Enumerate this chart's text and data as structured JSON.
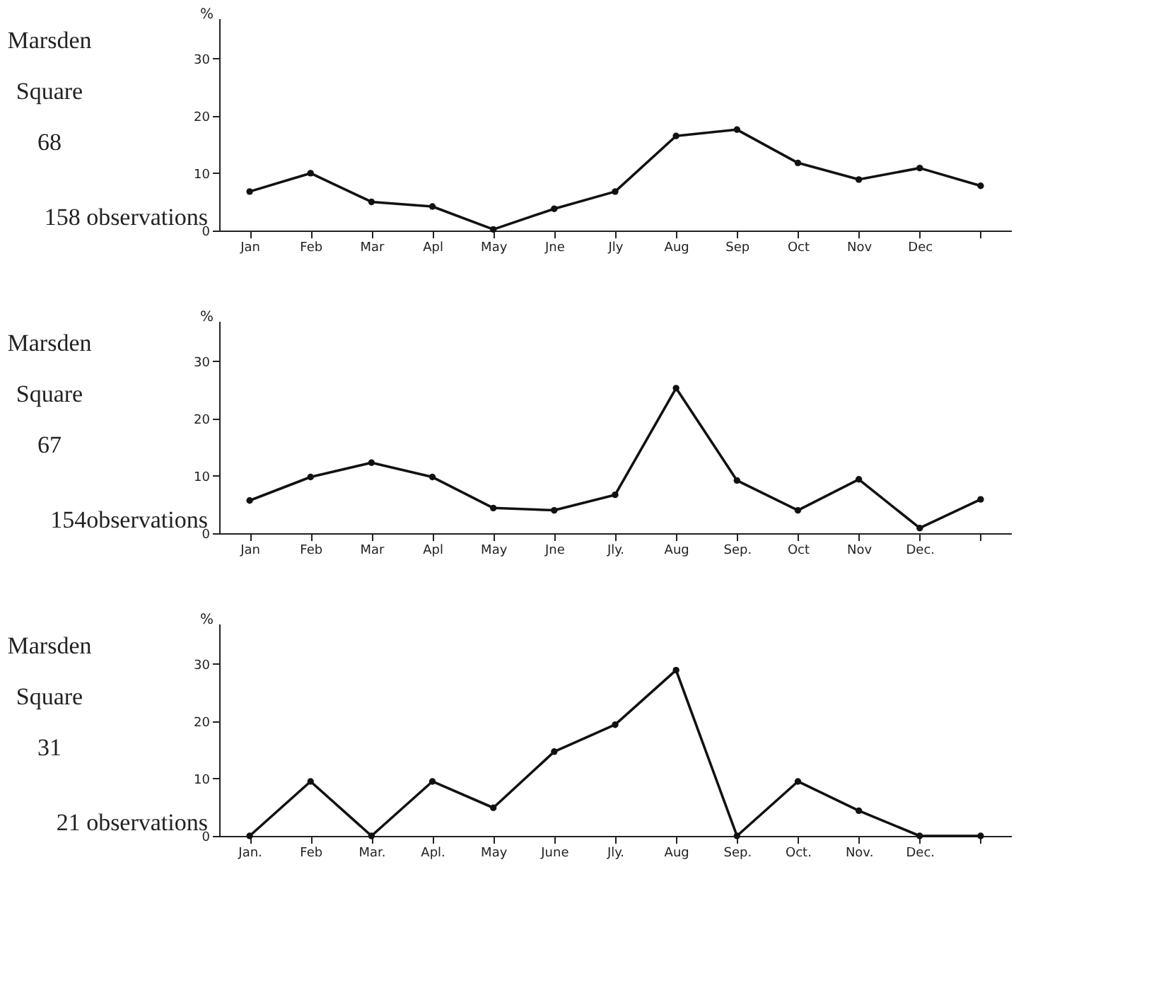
{
  "chart_data": [
    {
      "type": "line",
      "title": "Marsden Square 68",
      "subtitle": "158 observations",
      "ylabel": "%",
      "categories": [
        "Jan",
        "Feb",
        "Mar",
        "Apl",
        "May",
        "Jne",
        "Jly",
        "Aug",
        "Sep",
        "Oct",
        "Nov",
        "Dec",
        null
      ],
      "series": [
        {
          "color": "#111111",
          "values": [
            6.8,
            10,
            5,
            4.2,
            0.2,
            3.8,
            6.8,
            16.5,
            17.6,
            11.8,
            8.9,
            10.9,
            7.8
          ]
        }
      ],
      "ylim": [
        0,
        37
      ],
      "yticks": [
        0,
        10,
        20,
        30
      ],
      "grid": false,
      "marker": "circle",
      "line_style": "solid"
    },
    {
      "type": "line",
      "title": "Marsden Square 67",
      "subtitle": "154observations",
      "ylabel": "%",
      "categories": [
        "Jan",
        "Feb",
        "Mar",
        "Apl",
        "May",
        "Jne",
        "Jly.",
        "Aug",
        "Sep.",
        "Oct",
        "Nov",
        "Dec.",
        null
      ],
      "series": [
        {
          "color": "#111111",
          "values": [
            5.7,
            9.8,
            12.3,
            9.8,
            4.4,
            4.0,
            6.7,
            25.3,
            9.2,
            4.0,
            9.4,
            0.9,
            5.9
          ]
        }
      ],
      "ylim": [
        0,
        37
      ],
      "yticks": [
        0,
        10,
        20,
        30
      ],
      "grid": false,
      "marker": "circle",
      "line_style": "solid"
    },
    {
      "type": "line",
      "title": "Marsden Square 31",
      "subtitle": "21 observations",
      "ylabel": "%",
      "categories": [
        "Jan.",
        "Feb",
        "Mar.",
        "Apl.",
        "May",
        "June",
        "Jly.",
        "Aug",
        "Sep.",
        "Oct.",
        "Nov.",
        "Dec.",
        null
      ],
      "series": [
        {
          "color": "#111111",
          "values": [
            0,
            9.5,
            0,
            9.5,
            4.9,
            14.7,
            19.4,
            28.9,
            0,
            9.5,
            4.4,
            0,
            0
          ]
        }
      ],
      "ylim": [
        0,
        37
      ],
      "yticks": [
        0,
        10,
        20,
        30
      ],
      "grid": false,
      "marker": "circle",
      "line_style": "solid"
    }
  ]
}
